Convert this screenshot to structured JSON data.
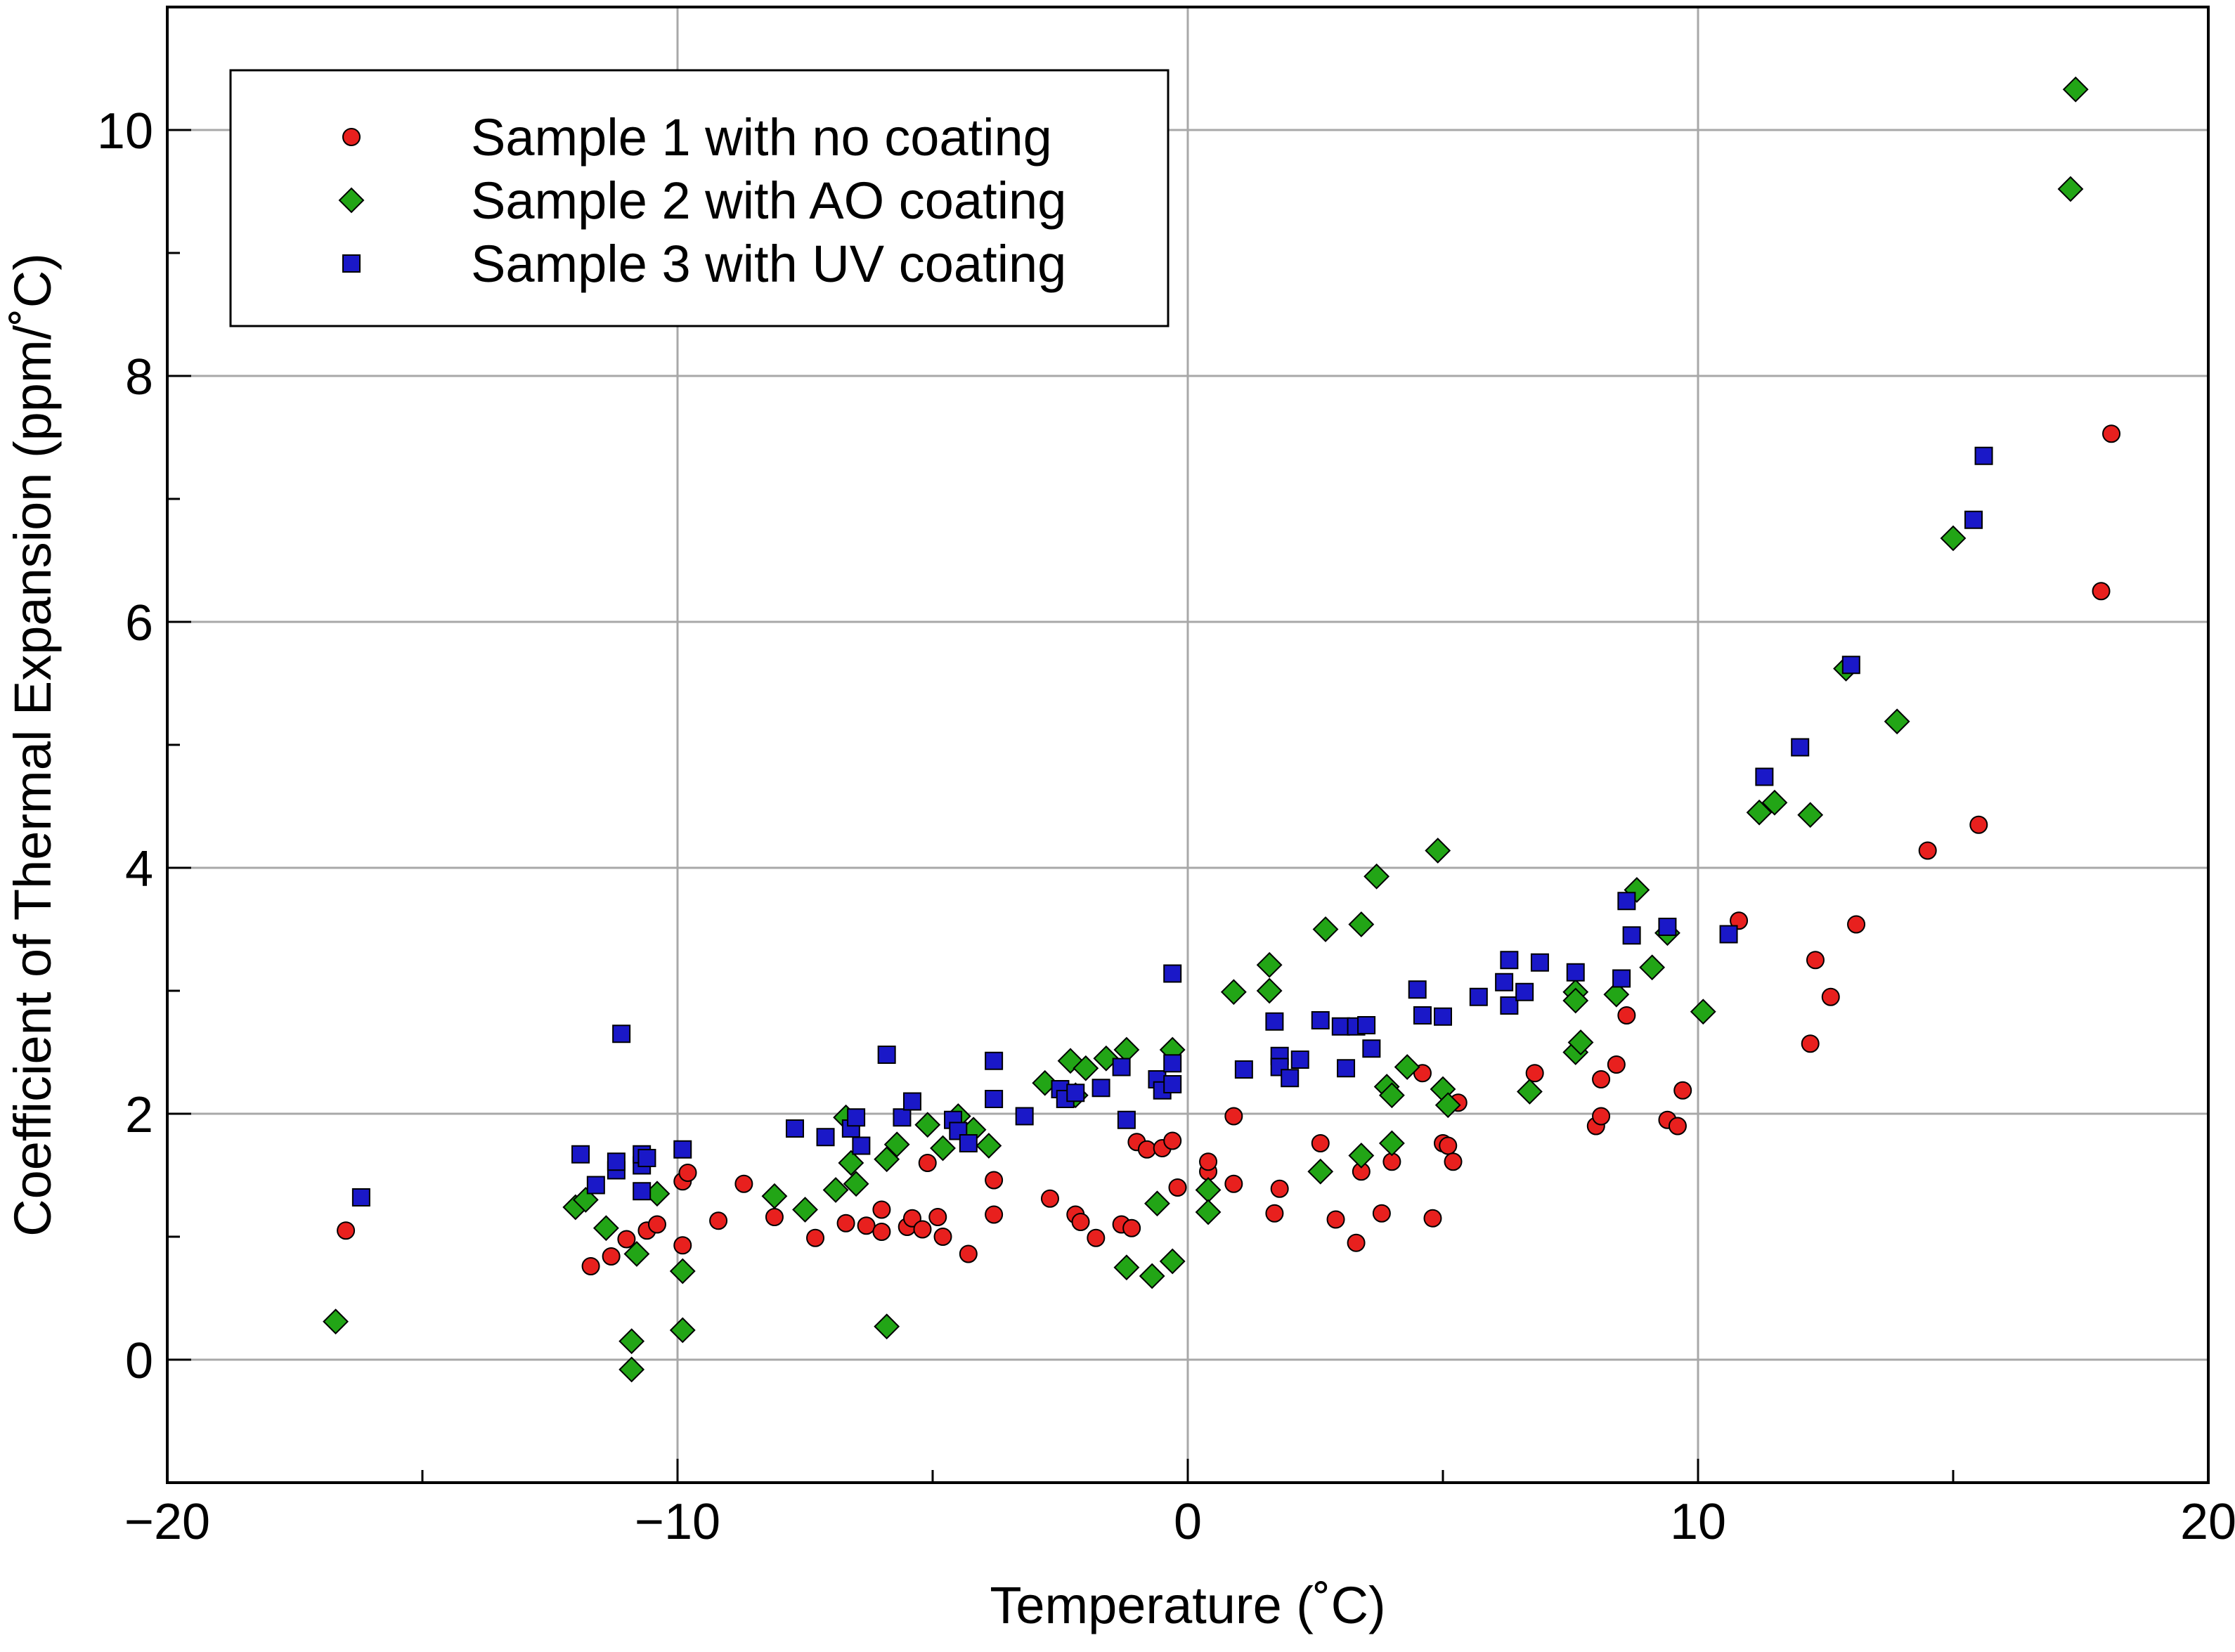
{
  "chart_data": {
    "type": "scatter",
    "xlabel": "Temperature (˚C)",
    "ylabel": "Coefficient of Thermal Expansion (ppm/˚C)",
    "xlim": [
      -20,
      20
    ],
    "ylim": [
      -1,
      11
    ],
    "xticks": [
      -20,
      -10,
      0,
      10,
      20
    ],
    "yticks": [
      0,
      2,
      4,
      6,
      8,
      10
    ],
    "xtick_labels": [
      "−20",
      "−10",
      "0",
      "10",
      "20"
    ],
    "ytick_labels": [
      "0",
      "2",
      "4",
      "6",
      "8",
      "10"
    ],
    "grid": true,
    "legend_position": "top-left",
    "series": [
      {
        "name": "Sample 1 with no coating",
        "marker": "circle",
        "color": "#e8201e",
        "points": [
          [
            -16.5,
            1.05
          ],
          [
            -11.7,
            0.76
          ],
          [
            -11.3,
            0.84
          ],
          [
            -11.0,
            0.98
          ],
          [
            -10.6,
            1.05
          ],
          [
            -10.4,
            1.1
          ],
          [
            -9.9,
            1.45
          ],
          [
            -9.8,
            1.52
          ],
          [
            -9.9,
            0.93
          ],
          [
            -9.2,
            1.13
          ],
          [
            -8.7,
            1.43
          ],
          [
            -8.1,
            1.16
          ],
          [
            -7.3,
            0.99
          ],
          [
            -6.7,
            1.11
          ],
          [
            -6.3,
            1.09
          ],
          [
            -6.0,
            1.04
          ],
          [
            -6.0,
            1.22
          ],
          [
            -5.5,
            1.08
          ],
          [
            -5.4,
            1.15
          ],
          [
            -5.2,
            1.06
          ],
          [
            -5.1,
            1.6
          ],
          [
            -4.9,
            1.16
          ],
          [
            -4.8,
            1.0
          ],
          [
            -4.3,
            0.86
          ],
          [
            -3.8,
            1.18
          ],
          [
            -3.8,
            1.46
          ],
          [
            -2.7,
            1.31
          ],
          [
            -2.2,
            1.18
          ],
          [
            -2.1,
            1.12
          ],
          [
            -1.8,
            0.99
          ],
          [
            -1.3,
            1.1
          ],
          [
            -1.1,
            1.07
          ],
          [
            -1.0,
            1.77
          ],
          [
            -0.8,
            1.71
          ],
          [
            -0.5,
            1.72
          ],
          [
            -0.3,
            1.78
          ],
          [
            -0.2,
            1.4
          ],
          [
            0.4,
            1.53
          ],
          [
            0.4,
            1.61
          ],
          [
            0.9,
            1.43
          ],
          [
            0.9,
            1.98
          ],
          [
            1.7,
            1.19
          ],
          [
            1.8,
            1.39
          ],
          [
            2.6,
            1.76
          ],
          [
            2.9,
            1.14
          ],
          [
            3.3,
            0.95
          ],
          [
            3.4,
            1.53
          ],
          [
            3.8,
            1.19
          ],
          [
            4.0,
            1.61
          ],
          [
            4.6,
            2.33
          ],
          [
            4.8,
            1.15
          ],
          [
            5.0,
            1.76
          ],
          [
            5.1,
            1.74
          ],
          [
            5.2,
            1.61
          ],
          [
            5.3,
            2.09
          ],
          [
            6.8,
            2.33
          ],
          [
            8.0,
            1.9
          ],
          [
            8.1,
            1.98
          ],
          [
            8.1,
            2.28
          ],
          [
            8.4,
            2.4
          ],
          [
            8.6,
            2.8
          ],
          [
            9.4,
            1.95
          ],
          [
            9.6,
            1.9
          ],
          [
            9.7,
            2.19
          ],
          [
            10.8,
            3.57
          ],
          [
            12.2,
            2.57
          ],
          [
            12.3,
            3.25
          ],
          [
            12.6,
            2.95
          ],
          [
            13.1,
            3.54
          ],
          [
            14.5,
            4.14
          ],
          [
            15.5,
            4.35
          ],
          [
            17.9,
            6.25
          ],
          [
            18.1,
            7.53
          ]
        ]
      },
      {
        "name": "Sample 2 with AO coating",
        "marker": "diamond",
        "color": "#22a516",
        "points": [
          [
            -16.7,
            0.31
          ],
          [
            -12.0,
            1.24
          ],
          [
            -11.8,
            1.3
          ],
          [
            -11.4,
            1.07
          ],
          [
            -10.9,
            0.15
          ],
          [
            -10.9,
            -0.08
          ],
          [
            -10.8,
            0.86
          ],
          [
            -10.4,
            1.35
          ],
          [
            -9.9,
            0.72
          ],
          [
            -9.9,
            0.24
          ],
          [
            -8.1,
            1.33
          ],
          [
            -7.5,
            1.22
          ],
          [
            -6.9,
            1.38
          ],
          [
            -6.7,
            1.97
          ],
          [
            -6.6,
            1.6
          ],
          [
            -6.5,
            1.43
          ],
          [
            -5.9,
            1.63
          ],
          [
            -5.9,
            0.27
          ],
          [
            -5.7,
            1.75
          ],
          [
            -5.1,
            1.91
          ],
          [
            -4.8,
            1.72
          ],
          [
            -4.5,
            1.98
          ],
          [
            -4.2,
            1.87
          ],
          [
            -3.9,
            1.74
          ],
          [
            -2.8,
            2.25
          ],
          [
            -2.3,
            2.43
          ],
          [
            -2.2,
            2.15
          ],
          [
            -2.0,
            2.37
          ],
          [
            -1.6,
            2.45
          ],
          [
            -1.2,
            2.52
          ],
          [
            -1.2,
            0.75
          ],
          [
            -0.7,
            0.68
          ],
          [
            -0.6,
            1.27
          ],
          [
            -0.3,
            0.8
          ],
          [
            -0.3,
            2.52
          ],
          [
            0.4,
            1.38
          ],
          [
            0.4,
            1.2
          ],
          [
            0.9,
            2.99
          ],
          [
            1.6,
            3.21
          ],
          [
            1.6,
            3.0
          ],
          [
            2.7,
            3.5
          ],
          [
            2.6,
            1.53
          ],
          [
            3.4,
            3.54
          ],
          [
            3.4,
            1.66
          ],
          [
            3.7,
            3.93
          ],
          [
            3.9,
            2.22
          ],
          [
            4.0,
            2.15
          ],
          [
            4.0,
            1.76
          ],
          [
            4.3,
            2.38
          ],
          [
            4.9,
            4.14
          ],
          [
            5.0,
            2.2
          ],
          [
            5.1,
            2.07
          ],
          [
            6.7,
            2.18
          ],
          [
            7.6,
            2.99
          ],
          [
            7.6,
            2.92
          ],
          [
            7.6,
            2.5
          ],
          [
            7.7,
            2.58
          ],
          [
            8.4,
            2.97
          ],
          [
            8.8,
            3.82
          ],
          [
            9.1,
            3.19
          ],
          [
            9.4,
            3.47
          ],
          [
            10.1,
            2.83
          ],
          [
            11.2,
            4.45
          ],
          [
            11.5,
            4.53
          ],
          [
            12.2,
            4.43
          ],
          [
            12.9,
            5.62
          ],
          [
            13.9,
            5.19
          ],
          [
            15.0,
            6.68
          ],
          [
            17.3,
            9.52
          ],
          [
            17.4,
            10.33
          ]
        ]
      },
      {
        "name": "Sample 3 with UV coating",
        "marker": "square",
        "color": "#1a18c8",
        "points": [
          [
            -16.2,
            1.32
          ],
          [
            -11.9,
            1.67
          ],
          [
            -11.6,
            1.42
          ],
          [
            -11.2,
            1.54
          ],
          [
            -11.2,
            1.61
          ],
          [
            -11.1,
            2.65
          ],
          [
            -10.7,
            1.37
          ],
          [
            -10.7,
            1.58
          ],
          [
            -10.7,
            1.67
          ],
          [
            -10.6,
            1.64
          ],
          [
            -9.9,
            1.71
          ],
          [
            -7.7,
            1.88
          ],
          [
            -7.1,
            1.81
          ],
          [
            -6.6,
            1.88
          ],
          [
            -6.5,
            1.97
          ],
          [
            -6.4,
            1.74
          ],
          [
            -5.9,
            2.48
          ],
          [
            -5.6,
            1.97
          ],
          [
            -5.4,
            2.1
          ],
          [
            -4.6,
            1.95
          ],
          [
            -4.5,
            1.86
          ],
          [
            -4.3,
            1.76
          ],
          [
            -3.8,
            2.43
          ],
          [
            -3.8,
            2.12
          ],
          [
            -3.2,
            1.98
          ],
          [
            -2.5,
            2.2
          ],
          [
            -2.4,
            2.12
          ],
          [
            -2.2,
            2.17
          ],
          [
            -1.7,
            2.21
          ],
          [
            -1.3,
            2.38
          ],
          [
            -1.2,
            1.95
          ],
          [
            -0.6,
            2.28
          ],
          [
            -0.5,
            2.19
          ],
          [
            -0.3,
            2.24
          ],
          [
            -0.3,
            2.41
          ],
          [
            -0.3,
            3.14
          ],
          [
            1.1,
            2.36
          ],
          [
            1.7,
            2.75
          ],
          [
            1.8,
            2.47
          ],
          [
            1.8,
            2.38
          ],
          [
            2.0,
            2.29
          ],
          [
            2.2,
            2.44
          ],
          [
            2.6,
            2.76
          ],
          [
            3.0,
            2.71
          ],
          [
            3.1,
            2.37
          ],
          [
            3.3,
            2.71
          ],
          [
            3.5,
            2.72
          ],
          [
            3.6,
            2.53
          ],
          [
            4.5,
            3.01
          ],
          [
            4.6,
            2.8
          ],
          [
            5.0,
            2.79
          ],
          [
            5.7,
            2.95
          ],
          [
            6.2,
            3.07
          ],
          [
            6.3,
            3.25
          ],
          [
            6.3,
            2.88
          ],
          [
            6.6,
            2.99
          ],
          [
            6.9,
            3.23
          ],
          [
            7.6,
            3.15
          ],
          [
            8.5,
            3.1
          ],
          [
            8.6,
            3.73
          ],
          [
            8.7,
            3.45
          ],
          [
            9.4,
            3.52
          ],
          [
            10.6,
            3.46
          ],
          [
            11.3,
            4.74
          ],
          [
            12.0,
            4.98
          ],
          [
            13.0,
            5.65
          ],
          [
            15.4,
            6.83
          ],
          [
            15.6,
            7.35
          ]
        ]
      }
    ]
  }
}
